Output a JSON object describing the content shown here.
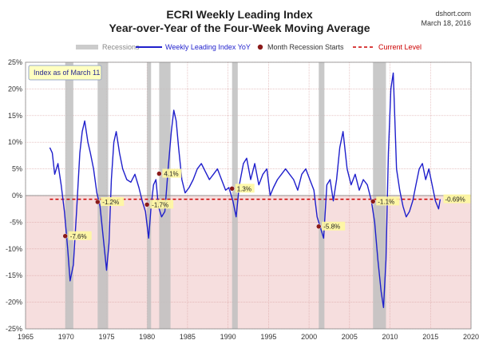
{
  "chart_data": {
    "type": "line",
    "title": "ECRI Weekly Leading Index",
    "subtitle": "Year-over-Year of the Four-Week Moving Average",
    "source": "dshort.com",
    "date": "March 18, 2016",
    "note_box": "Index as of March 11",
    "xlim": [
      1965,
      2020
    ],
    "ylim": [
      -25,
      25
    ],
    "x_ticks": [
      1965,
      1970,
      1975,
      1980,
      1985,
      1990,
      1995,
      2000,
      2005,
      2010,
      2015,
      2020
    ],
    "y_ticks": [
      -25,
      -20,
      -15,
      -10,
      -5,
      0,
      5,
      10,
      15,
      20,
      25
    ],
    "y_tick_labels": [
      "-25%",
      "-20%",
      "-15%",
      "-10%",
      "-5%",
      "0%",
      "5%",
      "10%",
      "15%",
      "20%",
      "25%"
    ],
    "legend": {
      "placement": "top",
      "recessions": "Recessions",
      "series": "Weekly Leading Index YoY",
      "marker": "Month Recession Starts",
      "level": "Current Level"
    },
    "current_level": -0.69,
    "current_level_label": "-0.69%",
    "recessions": [
      [
        1969.9,
        1970.9
      ],
      [
        1973.9,
        1975.2
      ],
      [
        1980.0,
        1980.5
      ],
      [
        1981.5,
        1982.9
      ],
      [
        1990.5,
        1991.2
      ],
      [
        2001.2,
        2001.9
      ],
      [
        2007.9,
        2009.5
      ]
    ],
    "recession_starts": [
      {
        "x": 1969.9,
        "y": -7.6,
        "label": "-7.6%"
      },
      {
        "x": 1973.9,
        "y": -1.2,
        "label": "-1.2%"
      },
      {
        "x": 1980.0,
        "y": -1.7,
        "label": "-1.7%"
      },
      {
        "x": 1981.5,
        "y": 4.1,
        "label": "4.1%"
      },
      {
        "x": 1990.5,
        "y": 1.3,
        "label": "1.3%"
      },
      {
        "x": 2001.2,
        "y": -5.8,
        "label": "-5.8%"
      },
      {
        "x": 2007.9,
        "y": -1.1,
        "label": "-1.1%"
      }
    ],
    "series": [
      {
        "name": "Weekly Leading Index YoY",
        "color": "#1f1fcc",
        "x": [
          1968.0,
          1968.3,
          1968.6,
          1969.0,
          1969.4,
          1969.8,
          1970.2,
          1970.5,
          1970.9,
          1971.3,
          1971.7,
          1972.0,
          1972.3,
          1972.7,
          1973.0,
          1973.4,
          1973.8,
          1974.2,
          1974.6,
          1975.0,
          1975.3,
          1975.6,
          1975.9,
          1976.2,
          1976.6,
          1977.0,
          1977.5,
          1978.0,
          1978.5,
          1979.0,
          1979.4,
          1979.8,
          1980.2,
          1980.5,
          1980.8,
          1981.1,
          1981.4,
          1981.8,
          1982.2,
          1982.6,
          1983.0,
          1983.3,
          1983.6,
          1983.9,
          1984.3,
          1984.7,
          1985.2,
          1985.7,
          1986.2,
          1986.7,
          1987.2,
          1987.7,
          1988.2,
          1988.7,
          1989.2,
          1989.7,
          1990.1,
          1990.6,
          1991.0,
          1991.4,
          1991.9,
          1992.3,
          1992.8,
          1993.3,
          1993.8,
          1994.3,
          1994.8,
          1995.2,
          1995.6,
          1996.1,
          1996.6,
          1997.1,
          1997.6,
          1998.1,
          1998.6,
          1999.1,
          1999.6,
          2000.1,
          2000.6,
          2001.0,
          2001.4,
          2001.8,
          2002.2,
          2002.6,
          2003.0,
          2003.4,
          2003.8,
          2004.2,
          2004.7,
          2005.2,
          2005.7,
          2006.2,
          2006.7,
          2007.2,
          2007.7,
          2008.1,
          2008.5,
          2008.9,
          2009.2,
          2009.5,
          2009.8,
          2010.1,
          2010.4,
          2010.8,
          2011.2,
          2011.6,
          2012.0,
          2012.4,
          2012.8,
          2013.2,
          2013.6,
          2014.0,
          2014.4,
          2014.8,
          2015.2,
          2015.6,
          2016.0,
          2016.2
        ],
        "y": [
          9.0,
          8.0,
          4.0,
          6.0,
          2.0,
          -3.0,
          -10.0,
          -16.0,
          -13.0,
          -3.0,
          8.0,
          12.0,
          14.0,
          10.0,
          8.0,
          5.0,
          0.5,
          -2.0,
          -8.0,
          -14.0,
          -9.0,
          3.0,
          10.0,
          12.0,
          8.0,
          5.0,
          3.0,
          2.5,
          4.0,
          1.5,
          -1.0,
          -3.0,
          -8.0,
          -2.0,
          2.0,
          3.0,
          -2.0,
          -4.0,
          -3.0,
          5.0,
          12.0,
          16.0,
          14.0,
          9.0,
          3.0,
          0.5,
          1.5,
          3.0,
          5.0,
          6.0,
          4.5,
          3.0,
          4.0,
          5.0,
          3.0,
          1.0,
          1.5,
          -1.0,
          -4.0,
          2.0,
          6.0,
          7.0,
          3.0,
          6.0,
          2.0,
          4.0,
          5.0,
          0.0,
          1.5,
          3.0,
          4.0,
          5.0,
          4.0,
          3.0,
          1.0,
          4.0,
          5.0,
          3.0,
          1.0,
          -4.0,
          -6.0,
          -8.0,
          2.0,
          3.0,
          -1.0,
          3.0,
          9.0,
          12.0,
          5.0,
          2.0,
          4.0,
          1.0,
          3.0,
          2.0,
          -1.0,
          -5.0,
          -12.0,
          -18.0,
          -21.0,
          -12.0,
          8.0,
          20.0,
          23.0,
          5.0,
          1.0,
          -2.0,
          -4.0,
          -3.0,
          -1.0,
          2.0,
          5.0,
          6.0,
          3.0,
          5.0,
          2.0,
          -1.0,
          -2.5,
          -0.69
        ]
      }
    ]
  }
}
